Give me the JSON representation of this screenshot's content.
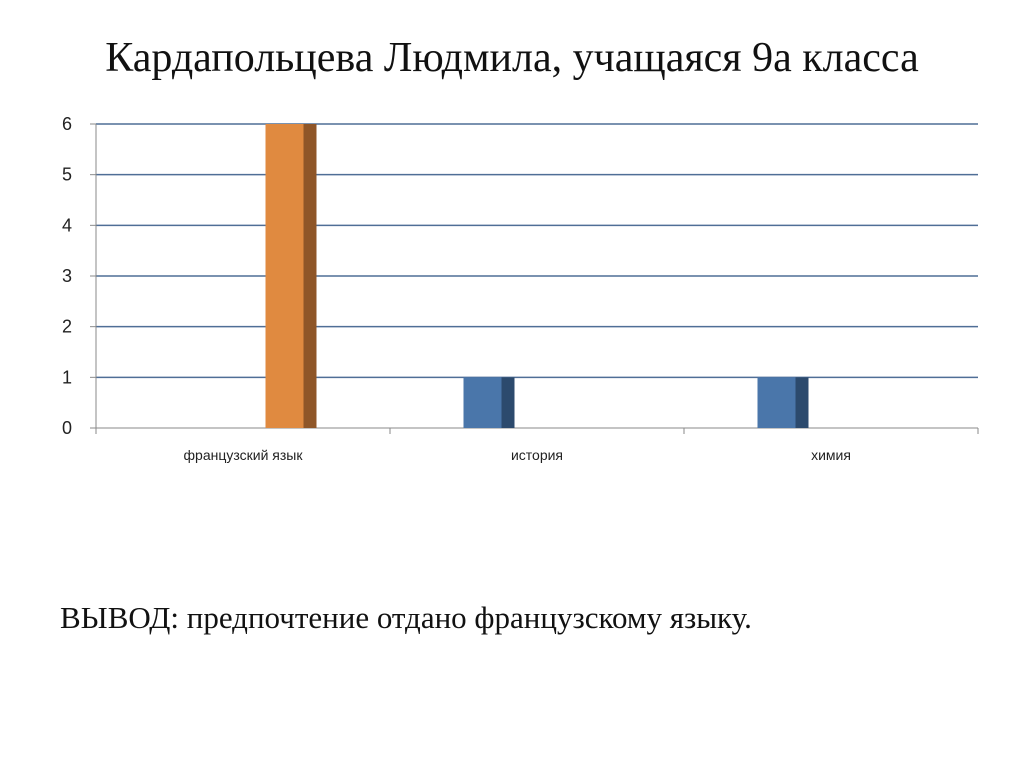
{
  "slide": {
    "title": "Кардапольцева Людмила, учащаяся 9а  класса",
    "conclusion": "ВЫВОД: предпочтение отдано французскому языку."
  },
  "chart_data": {
    "type": "bar",
    "title": "Кардапольцева Людмила, учащаяся 9а  класса",
    "xlabel": "",
    "ylabel": "",
    "categories": [
      "французский язык",
      "история",
      "химия"
    ],
    "series": [
      {
        "values": [
          0,
          1,
          1
        ],
        "color": "#4a76aa",
        "shade": "#2c4a6d"
      },
      {
        "values": [
          6,
          0,
          0
        ],
        "color": "#e08a40",
        "shade": "#8f5628"
      }
    ],
    "ylim": [
      0,
      6
    ],
    "yticks": [
      0,
      1,
      2,
      3,
      4,
      5,
      6
    ],
    "grid": true,
    "gridColor": "#4f6e96",
    "legend": "none",
    "bar_style": "3d-shaded"
  }
}
